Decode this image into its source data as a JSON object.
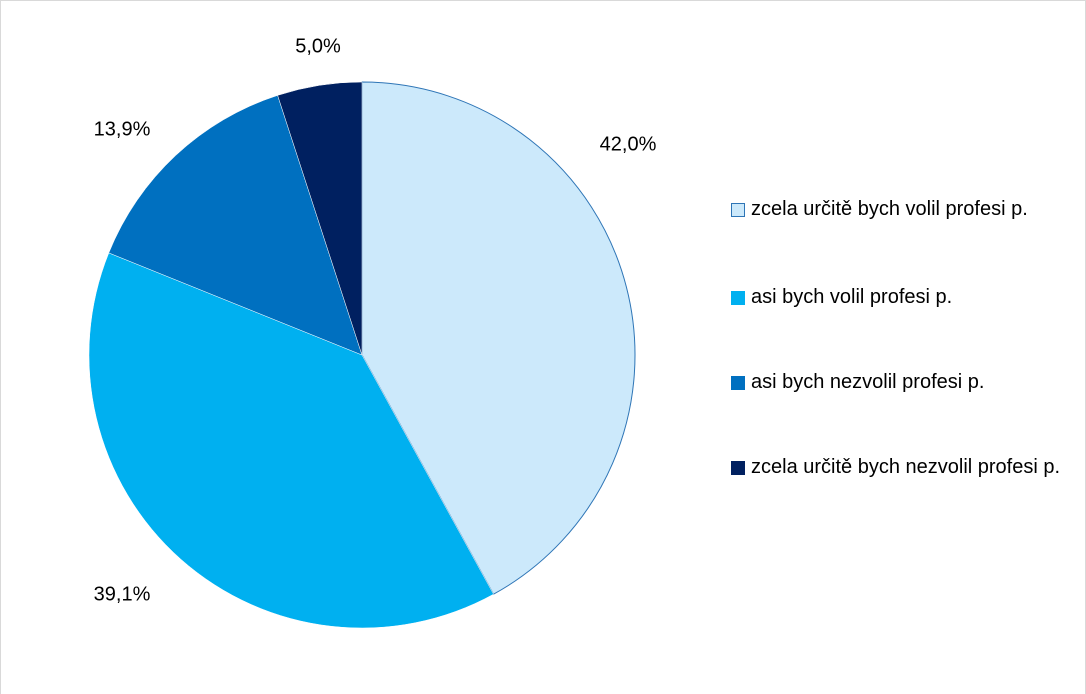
{
  "chart_data": {
    "type": "pie",
    "categories": [
      "zcela určitě bych volil profesi p.",
      "asi bych volil profesi p.",
      "asi bych nezvolil profesi p.",
      "zcela určitě bych nezvolil profesi p."
    ],
    "values": [
      42.0,
      39.1,
      13.9,
      5.0
    ],
    "value_labels": [
      "42,0%",
      "39,1%",
      "13,9%",
      "5,0%"
    ],
    "colors": [
      "#cce9fb",
      "#00b0f0",
      "#0070c0",
      "#002060"
    ],
    "legend": "right"
  }
}
